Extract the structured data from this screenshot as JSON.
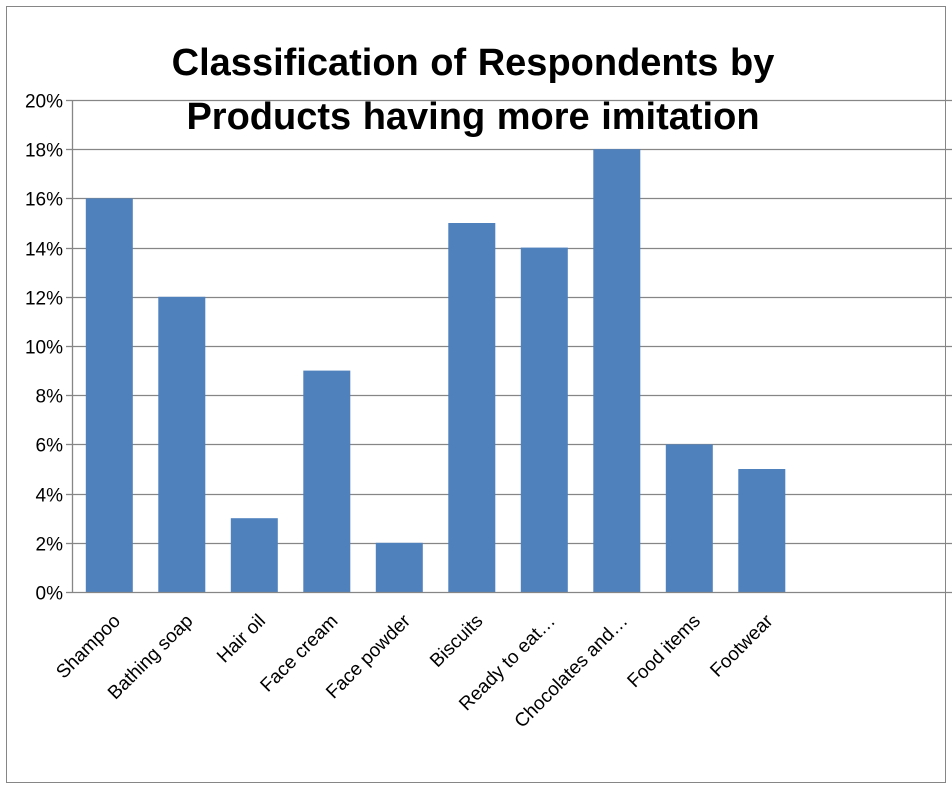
{
  "chart_data": {
    "type": "bar",
    "title_lines": [
      "Classification of Respondents by",
      "Products having more imitation"
    ],
    "categories": [
      "Shampoo",
      "Bathing soap",
      "Hair oil",
      "Face cream",
      "Face powder",
      "Biscuits",
      "Ready to eat…",
      "Chocolates and…",
      "Food items",
      "Footwear"
    ],
    "values": [
      0.16,
      0.12,
      0.03,
      0.09,
      0.02,
      0.15,
      0.14,
      0.18,
      0.06,
      0.05
    ],
    "y_ticks": [
      "0%",
      "2%",
      "4%",
      "6%",
      "8%",
      "10%",
      "12%",
      "14%",
      "16%",
      "18%",
      "20%"
    ],
    "ylim": [
      0,
      0.2
    ],
    "grid": true,
    "legend": "none",
    "bar_color": "#4f81bd",
    "grid_color": "#868686"
  }
}
